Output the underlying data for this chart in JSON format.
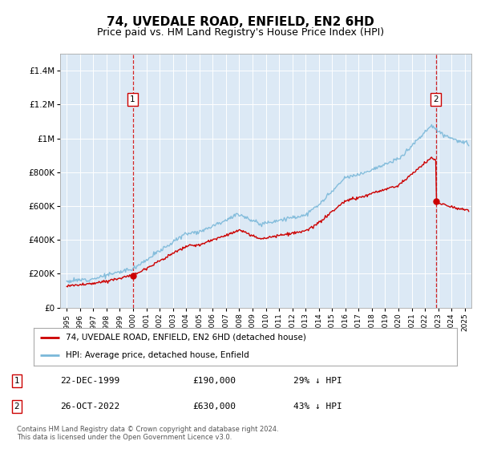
{
  "title": "74, UVEDALE ROAD, ENFIELD, EN2 6HD",
  "subtitle": "Price paid vs. HM Land Registry's House Price Index (HPI)",
  "title_fontsize": 11,
  "subtitle_fontsize": 9,
  "background_color": "#ffffff",
  "plot_bg_color": "#dce9f5",
  "ylim": [
    0,
    1500000
  ],
  "xlim_start": 1994.5,
  "xlim_end": 2025.5,
  "yticks": [
    0,
    200000,
    400000,
    600000,
    800000,
    1000000,
    1200000,
    1400000
  ],
  "ytick_labels": [
    "£0",
    "£200K",
    "£400K",
    "£600K",
    "£800K",
    "£1M",
    "£1.2M",
    "£1.4M"
  ],
  "xticks": [
    1995,
    1996,
    1997,
    1998,
    1999,
    2000,
    2001,
    2002,
    2003,
    2004,
    2005,
    2006,
    2007,
    2008,
    2009,
    2010,
    2011,
    2012,
    2013,
    2014,
    2015,
    2016,
    2017,
    2018,
    2019,
    2020,
    2021,
    2022,
    2023,
    2024,
    2025
  ],
  "transaction1": {
    "date_num": 1999.97,
    "price": 190000,
    "label": "1",
    "date_str": "22-DEC-1999",
    "pct": "29% ↓ HPI"
  },
  "transaction2": {
    "date_num": 2022.82,
    "price": 630000,
    "label": "2",
    "date_str": "26-OCT-2022",
    "pct": "43% ↓ HPI"
  },
  "legend_label_red": "74, UVEDALE ROAD, ENFIELD, EN2 6HD (detached house)",
  "legend_label_blue": "HPI: Average price, detached house, Enfield",
  "footer": "Contains HM Land Registry data © Crown copyright and database right 2024.\nThis data is licensed under the Open Government Licence v3.0.",
  "red_line_color": "#cc0000",
  "blue_line_color": "#7ab8d9",
  "grid_color": "#ffffff",
  "dashed_line_color": "#cc0000",
  "marker_box_color": "#cc0000",
  "marker_dot_color": "#cc0000"
}
